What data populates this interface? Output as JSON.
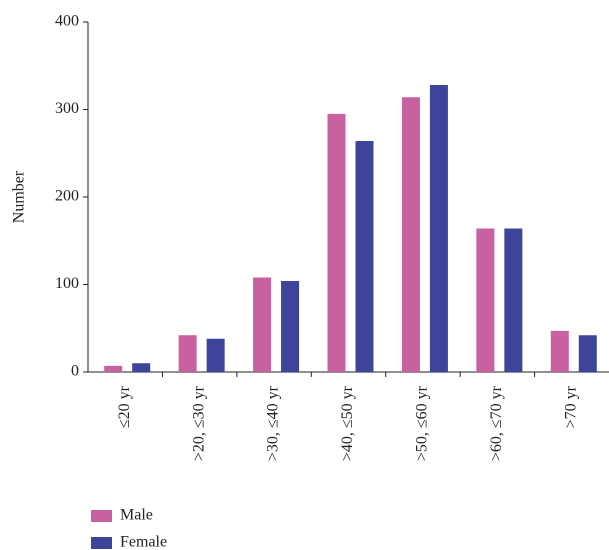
{
  "chart_data": {
    "type": "bar",
    "y_label": "Number",
    "categories": [
      "≤20 yr",
      ">20, ≤30 yr",
      ">30, ≤40 yr",
      ">40, ≤50 yr",
      ">50, ≤60 yr",
      ">60, ≤70 yr",
      ">70 yr"
    ],
    "series": [
      {
        "name": "Male",
        "color": "#c9609f",
        "values": [
          7,
          42,
          108,
          295,
          314,
          164,
          47
        ]
      },
      {
        "name": "Female",
        "color": "#3d4499",
        "values": [
          10,
          38,
          104,
          264,
          328,
          164,
          42
        ]
      }
    ],
    "ylim": [
      0,
      400
    ],
    "yticks": [
      0,
      100,
      200,
      300,
      400
    ],
    "legend": "bottom-left"
  }
}
